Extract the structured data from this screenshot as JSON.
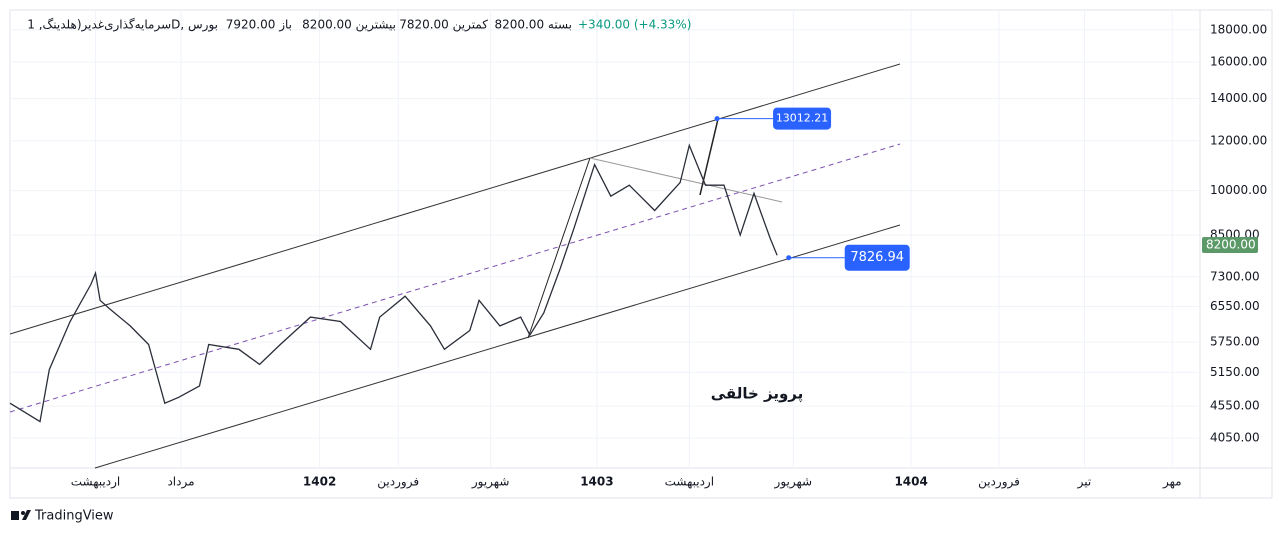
{
  "header": {
    "symbol": "سرمایه‌گذاری‌غدیر(هلدینگ, 1D, بورس",
    "open": "باز 7920.00",
    "high": "بیشترین 8200.00",
    "low": "کمترین 7820.00",
    "close": "بسته 8200.00",
    "change": "+340.00 (+4.33%)"
  },
  "watermark": "پرویز خالقی",
  "brand": "TradingView",
  "chart_data": {
    "type": "line",
    "log_scale": true,
    "grid": true,
    "color": "#2a2e39",
    "x": [
      -13.4,
      -12.1,
      -11.7,
      -10.8,
      -9.9,
      -9.7,
      -9.5,
      -9.1,
      -8.2,
      -7.4,
      -6.7,
      -6.1,
      -5.2,
      -4.8,
      -3.5,
      -2.6,
      -1.7,
      -0.4,
      0.9,
      2.2,
      2.6,
      3.7,
      4.8,
      5.4,
      6.5,
      6.9,
      7.8,
      8.7,
      9.1,
      9.7,
      10.4,
      11.0,
      11.9,
      12.6,
      13.4,
      14.5,
      15.6,
      16.0,
      16.7,
      17.5,
      18.2,
      18.8,
      19.5,
      19.8
    ],
    "values": [
      4600,
      4300,
      5200,
      6200,
      7100,
      7400,
      6700,
      6500,
      6100,
      5700,
      4600,
      4700,
      4900,
      5700,
      5600,
      5300,
      5700,
      6300,
      6200,
      5600,
      6300,
      6800,
      6100,
      5600,
      6000,
      6700,
      6100,
      6300,
      5900,
      6400,
      7500,
      8700,
      11000,
      9800,
      10200,
      9300,
      10300,
      11800,
      10200,
      10200,
      8500,
      9900,
      8400,
      7900
    ],
    "xlim": [
      -13.4,
      38.1
    ],
    "ylim": [
      3630,
      19350
    ],
    "xticks": [
      {
        "value": -9.7,
        "label": "اردیبهشت"
      },
      {
        "value": -6.0,
        "label": "مرداد"
      },
      {
        "value": 0,
        "label": "1402"
      },
      {
        "value": 3.4,
        "label": "فروردین"
      },
      {
        "value": 7.4,
        "label": "شهریور"
      },
      {
        "value": 12,
        "label": "1403"
      },
      {
        "value": 16.0,
        "label": "اردیبهشت"
      },
      {
        "value": 20.5,
        "label": "شهریور"
      },
      {
        "value": 25.6,
        "label": "1404"
      },
      {
        "value": 29.4,
        "label": "فروردین"
      },
      {
        "value": 33.1,
        "label": "تیر"
      },
      {
        "value": 36.9,
        "label": "مهر"
      }
    ],
    "yticks": [
      {
        "value": 18000,
        "label": "18000.00"
      },
      {
        "value": 16000,
        "label": "16000.00"
      },
      {
        "value": 14000,
        "label": "14000.00"
      },
      {
        "value": 12000,
        "label": "12000.00"
      },
      {
        "value": 10000,
        "label": "10000.00"
      },
      {
        "value": 8500,
        "label": "8500.00"
      },
      {
        "value": 7300,
        "label": "7300.00"
      },
      {
        "value": 6550,
        "label": "6550.00"
      },
      {
        "value": 5750,
        "label": "5750.00"
      },
      {
        "value": 5150,
        "label": "5150.00"
      },
      {
        "value": 4550,
        "label": "4550.00"
      },
      {
        "value": 4050,
        "label": "4050.00"
      }
    ],
    "last_price": {
      "value": 8200,
      "label": "8200.00"
    },
    "annotations": [
      {
        "value": 13012.21,
        "x": 17.2
      },
      {
        "value": 7826.94,
        "x": 20.3
      }
    ]
  }
}
